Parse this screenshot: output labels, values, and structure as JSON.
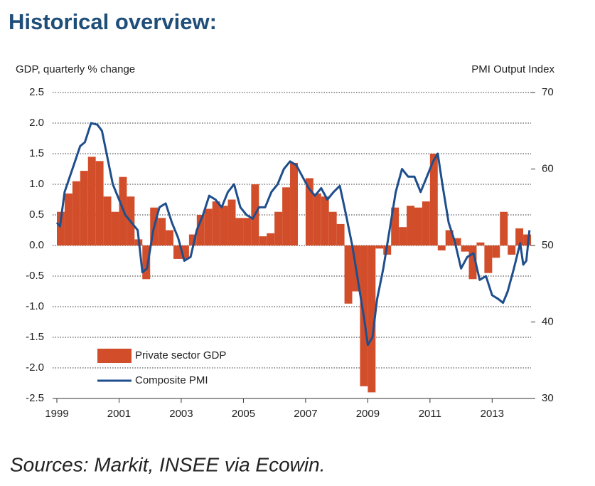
{
  "chart_data": {
    "type": "bar-line",
    "title": "Historical overview:",
    "y_label": "GDP, quarterly % change",
    "y2_label": "PMI Output  Index",
    "source": "Sources: Markit, INSEE via Ecowin.",
    "xlim": [
      1999,
      2014.25
    ],
    "xticks": [
      1999,
      2001,
      2003,
      2005,
      2007,
      2009,
      2011,
      2013
    ],
    "ylim": [
      -2.5,
      2.5
    ],
    "yticks": [
      -2.5,
      {
        "value": -2,
        "label": "-2.0"
      },
      -1.5,
      {
        "value": -1,
        "label": "-1.0"
      },
      -0.5,
      {
        "value": 0,
        "label": "0.0"
      },
      0.5,
      {
        "value": 1,
        "label": "1.0"
      },
      1.5,
      {
        "value": 2,
        "label": "2.0"
      },
      2.5
    ],
    "y2lim": [
      30,
      70
    ],
    "y2ticks": [
      30,
      40,
      50,
      60,
      70
    ],
    "grid": true,
    "legend": "lower left",
    "series": [
      {
        "name": "Private sector GDP",
        "type": "bar",
        "color": "#d24e2b",
        "bar_width": 0.25,
        "x": [
          1999,
          1999.25,
          1999.5,
          1999.75,
          2000,
          2000.25,
          2000.5,
          2000.75,
          2001,
          2001.25,
          2001.5,
          2001.75,
          2002,
          2002.25,
          2002.5,
          2002.75,
          2003,
          2003.25,
          2003.5,
          2003.75,
          2004,
          2004.25,
          2004.5,
          2004.75,
          2005,
          2005.25,
          2005.5,
          2005.75,
          2006,
          2006.25,
          2006.5,
          2006.75,
          2007,
          2007.25,
          2007.5,
          2007.75,
          2008,
          2008.25,
          2008.5,
          2008.75,
          2009,
          2009.25,
          2009.5,
          2009.75,
          2010,
          2010.25,
          2010.5,
          2010.75,
          2011,
          2011.25,
          2011.5,
          2011.75,
          2012,
          2012.25,
          2012.5,
          2012.75,
          2013,
          2013.25,
          2013.5,
          2013.75,
          2014
        ],
        "values": [
          0.55,
          0.85,
          1.05,
          1.22,
          1.45,
          1.38,
          0.8,
          0.55,
          1.12,
          0.8,
          0.1,
          -0.55,
          0.62,
          0.45,
          0.25,
          -0.22,
          -0.22,
          0.18,
          0.5,
          0.6,
          0.72,
          0.65,
          0.75,
          0.45,
          0.45,
          1.0,
          0.15,
          0.2,
          0.55,
          0.95,
          1.35,
          0.0,
          1.1,
          0.85,
          0.8,
          0.55,
          0.35,
          -0.95,
          -0.75,
          -2.3,
          -2.4,
          -0.05,
          -0.15,
          0.62,
          0.3,
          0.65,
          0.62,
          0.72,
          1.5,
          -0.08,
          0.25,
          0.12,
          -0.1,
          -0.55,
          0.05,
          -0.45,
          -0.2,
          0.55,
          -0.15,
          0.28,
          0.18
        ]
      },
      {
        "name": "Composite PMI",
        "type": "line",
        "color": "#1f4e8c",
        "axis": "y2",
        "x": [
          1999.0,
          1999.1,
          1999.25,
          1999.5,
          1999.75,
          1999.9,
          2000.1,
          2000.3,
          2000.45,
          2000.6,
          2000.8,
          2001.0,
          2001.2,
          2001.4,
          2001.6,
          2001.75,
          2001.9,
          2002.1,
          2002.3,
          2002.5,
          2002.7,
          2002.9,
          2003.1,
          2003.3,
          2003.5,
          2003.7,
          2003.9,
          2004.1,
          2004.3,
          2004.5,
          2004.7,
          2004.9,
          2005.1,
          2005.3,
          2005.5,
          2005.7,
          2005.9,
          2006.1,
          2006.3,
          2006.5,
          2006.7,
          2006.9,
          2007.1,
          2007.3,
          2007.5,
          2007.7,
          2007.9,
          2008.1,
          2008.3,
          2008.5,
          2008.7,
          2008.9,
          2009.0,
          2009.15,
          2009.3,
          2009.5,
          2009.7,
          2009.9,
          2010.1,
          2010.3,
          2010.5,
          2010.7,
          2010.9,
          2011.1,
          2011.25,
          2011.4,
          2011.6,
          2011.8,
          2012.0,
          2012.2,
          2012.4,
          2012.6,
          2012.8,
          2013.0,
          2013.2,
          2013.35,
          2013.5,
          2013.7,
          2013.9,
          2014.0,
          2014.1,
          2014.2
        ],
        "values": [
          53,
          52.5,
          57,
          60,
          63,
          63.5,
          66,
          65.8,
          65,
          62,
          58,
          56,
          54,
          53,
          52,
          46.5,
          47,
          52,
          55,
          55.5,
          53,
          51,
          48,
          48.5,
          52,
          54,
          56.5,
          56,
          55,
          57,
          58,
          55,
          54,
          53.5,
          55,
          55,
          57,
          58,
          60,
          61,
          60.5,
          59,
          57.5,
          56.5,
          57.5,
          56,
          57,
          57.8,
          54,
          50,
          45,
          40,
          37,
          38,
          43,
          47,
          52,
          57,
          60,
          59,
          59,
          57,
          59,
          61,
          62,
          58,
          53,
          50.5,
          47,
          48.5,
          49,
          45.5,
          46,
          43.5,
          43,
          42.5,
          44,
          47,
          50.3,
          47.5,
          48,
          52
        ]
      }
    ]
  }
}
